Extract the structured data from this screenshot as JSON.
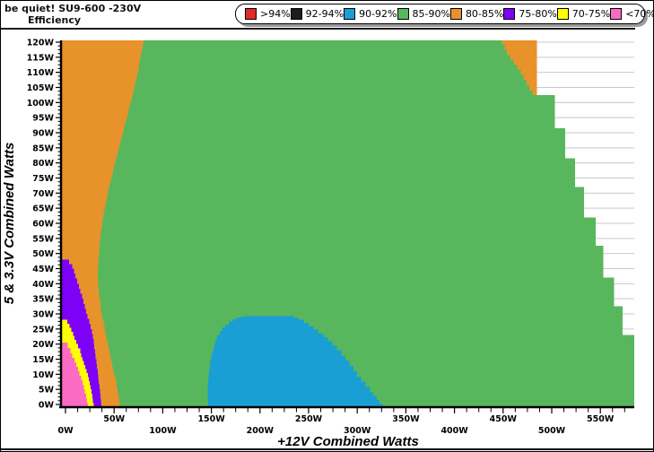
{
  "header": {
    "title": "be quiet! SU9-600 -230V",
    "subtitle": "Efficiency"
  },
  "chart_data": {
    "type": "heatmap",
    "title": "be quiet! SU9-600 -230V",
    "subtitle": "Efficiency",
    "xlabel": "+12V Combined Watts",
    "ylabel": "5 & 3.3V Combined Watts",
    "xlim": [
      0,
      585
    ],
    "ylim": [
      0,
      120
    ],
    "x_tick_step": 50,
    "y_tick_step": 5,
    "x_minor_step": 12.5,
    "y_minor_step": 1.25,
    "x_tick_labels": [
      "0W",
      "50W",
      "100W",
      "150W",
      "200W",
      "250W",
      "300W",
      "350W",
      "400W",
      "450W",
      "500W",
      "550W"
    ],
    "y_tick_labels": [
      "0W",
      "5W",
      "10W",
      "15W",
      "20W",
      "25W",
      "30W",
      "35W",
      "40W",
      "45W",
      "50W",
      "55W",
      "60W",
      "65W",
      "70W",
      "75W",
      "80W",
      "85W",
      "90W",
      "95W",
      "100W",
      "105W",
      "110W",
      "115W",
      "120W"
    ],
    "grid": {
      "step": 5,
      "color": "#C9C9C9",
      "orientation": "horizontal"
    },
    "legend": [
      {
        "label": ">94%",
        "color": "#DF2B2B"
      },
      {
        "label": "92-94%",
        "color": "#1C1C1C"
      },
      {
        "label": "90-92%",
        "color": "#199FD3"
      },
      {
        "label": "85-90%",
        "color": "#58B75C"
      },
      {
        "label": "80-85%",
        "color": "#E8922C"
      },
      {
        "label": "75-80%",
        "color": "#7D00F7"
      },
      {
        "label": "70-75%",
        "color": "#FFFF00"
      },
      {
        "label": "<70%",
        "color": "#FB6BC4"
      }
    ],
    "regions": [
      {
        "band": "85-90pct-main",
        "label": "85-90%",
        "color": "#58B75C",
        "points": [
          [
            -6,
            -1
          ],
          [
            -6,
            121
          ],
          [
            485,
            121
          ],
          [
            485,
            102.5
          ],
          [
            503,
            102.5
          ],
          [
            503,
            91.5
          ],
          [
            514,
            91.5
          ],
          [
            514,
            81.5
          ],
          [
            524,
            81.5
          ],
          [
            524,
            72
          ],
          [
            533,
            72
          ],
          [
            533,
            62
          ],
          [
            545,
            62
          ],
          [
            545,
            52.5
          ],
          [
            553,
            52.5
          ],
          [
            553,
            42
          ],
          [
            564,
            42
          ],
          [
            564,
            32.5
          ],
          [
            573,
            32.5
          ],
          [
            573,
            23
          ],
          [
            586,
            23
          ],
          [
            586,
            -1
          ]
        ]
      },
      {
        "band": "80-85pct-left",
        "label": "80-85%",
        "color": "#E8922C",
        "points": [
          [
            -6,
            -1
          ],
          [
            -6,
            121
          ],
          [
            81,
            121
          ],
          [
            75,
            110
          ],
          [
            67,
            99
          ],
          [
            58,
            88
          ],
          [
            50,
            78
          ],
          [
            44,
            70
          ],
          [
            39,
            62
          ],
          [
            36,
            55
          ],
          [
            34,
            48
          ],
          [
            33,
            42
          ],
          [
            34,
            37
          ],
          [
            36,
            32
          ],
          [
            38,
            28
          ],
          [
            41,
            23
          ],
          [
            45,
            17
          ],
          [
            49,
            11
          ],
          [
            52,
            7
          ],
          [
            56,
            -1
          ]
        ]
      },
      {
        "band": "75-80pct",
        "label": "75-80%",
        "color": "#7D00F7",
        "points": [
          [
            -6,
            -1
          ],
          [
            -6,
            48
          ],
          [
            0,
            48
          ],
          [
            7,
            45
          ],
          [
            12,
            40
          ],
          [
            17,
            35
          ],
          [
            21,
            30
          ],
          [
            26,
            25
          ],
          [
            29,
            20
          ],
          [
            31,
            15
          ],
          [
            33,
            10
          ],
          [
            35,
            5
          ],
          [
            37,
            -1
          ]
        ]
      },
      {
        "band": "70-75pct",
        "label": "70-75%",
        "color": "#FFFF00",
        "points": [
          [
            -6,
            -1
          ],
          [
            -6,
            28
          ],
          [
            0,
            28
          ],
          [
            6,
            24
          ],
          [
            11,
            20
          ],
          [
            15,
            17
          ],
          [
            19,
            13
          ],
          [
            23,
            9
          ],
          [
            26,
            5
          ],
          [
            29,
            -1
          ]
        ]
      },
      {
        "band": "under70pct",
        "label": "<70%",
        "color": "#FB6BC4",
        "points": [
          [
            -6,
            -1
          ],
          [
            -6,
            20.5
          ],
          [
            0,
            20.5
          ],
          [
            5,
            17
          ],
          [
            9,
            14
          ],
          [
            13,
            11
          ],
          [
            16,
            8
          ],
          [
            19,
            5
          ],
          [
            21,
            2
          ],
          [
            23,
            -1
          ]
        ]
      },
      {
        "band": "90-92pct",
        "label": "90-92%",
        "color": "#199FD3",
        "points": [
          [
            147,
            -1
          ],
          [
            146,
            5
          ],
          [
            147,
            10
          ],
          [
            149,
            15
          ],
          [
            152,
            19
          ],
          [
            156,
            23
          ],
          [
            161,
            25.5
          ],
          [
            168,
            27.5
          ],
          [
            176,
            28.8
          ],
          [
            186,
            29.3
          ],
          [
            230,
            29.3
          ],
          [
            240,
            28
          ],
          [
            250,
            26
          ],
          [
            260,
            23.5
          ],
          [
            270,
            21
          ],
          [
            279,
            18
          ],
          [
            288,
            14.5
          ],
          [
            296,
            11
          ],
          [
            304,
            7.5
          ],
          [
            313,
            4
          ],
          [
            320,
            1.5
          ],
          [
            326,
            -1
          ]
        ]
      },
      {
        "band": "80-85pct-topright",
        "label": "80-85%",
        "color": "#E8922C",
        "points": [
          [
            447,
            121
          ],
          [
            485,
            121
          ],
          [
            485,
            102.5
          ],
          [
            480,
            104
          ],
          [
            474,
            107.5
          ],
          [
            468,
            111
          ],
          [
            461,
            114
          ],
          [
            454,
            117.5
          ],
          [
            449,
            121
          ]
        ]
      }
    ]
  }
}
